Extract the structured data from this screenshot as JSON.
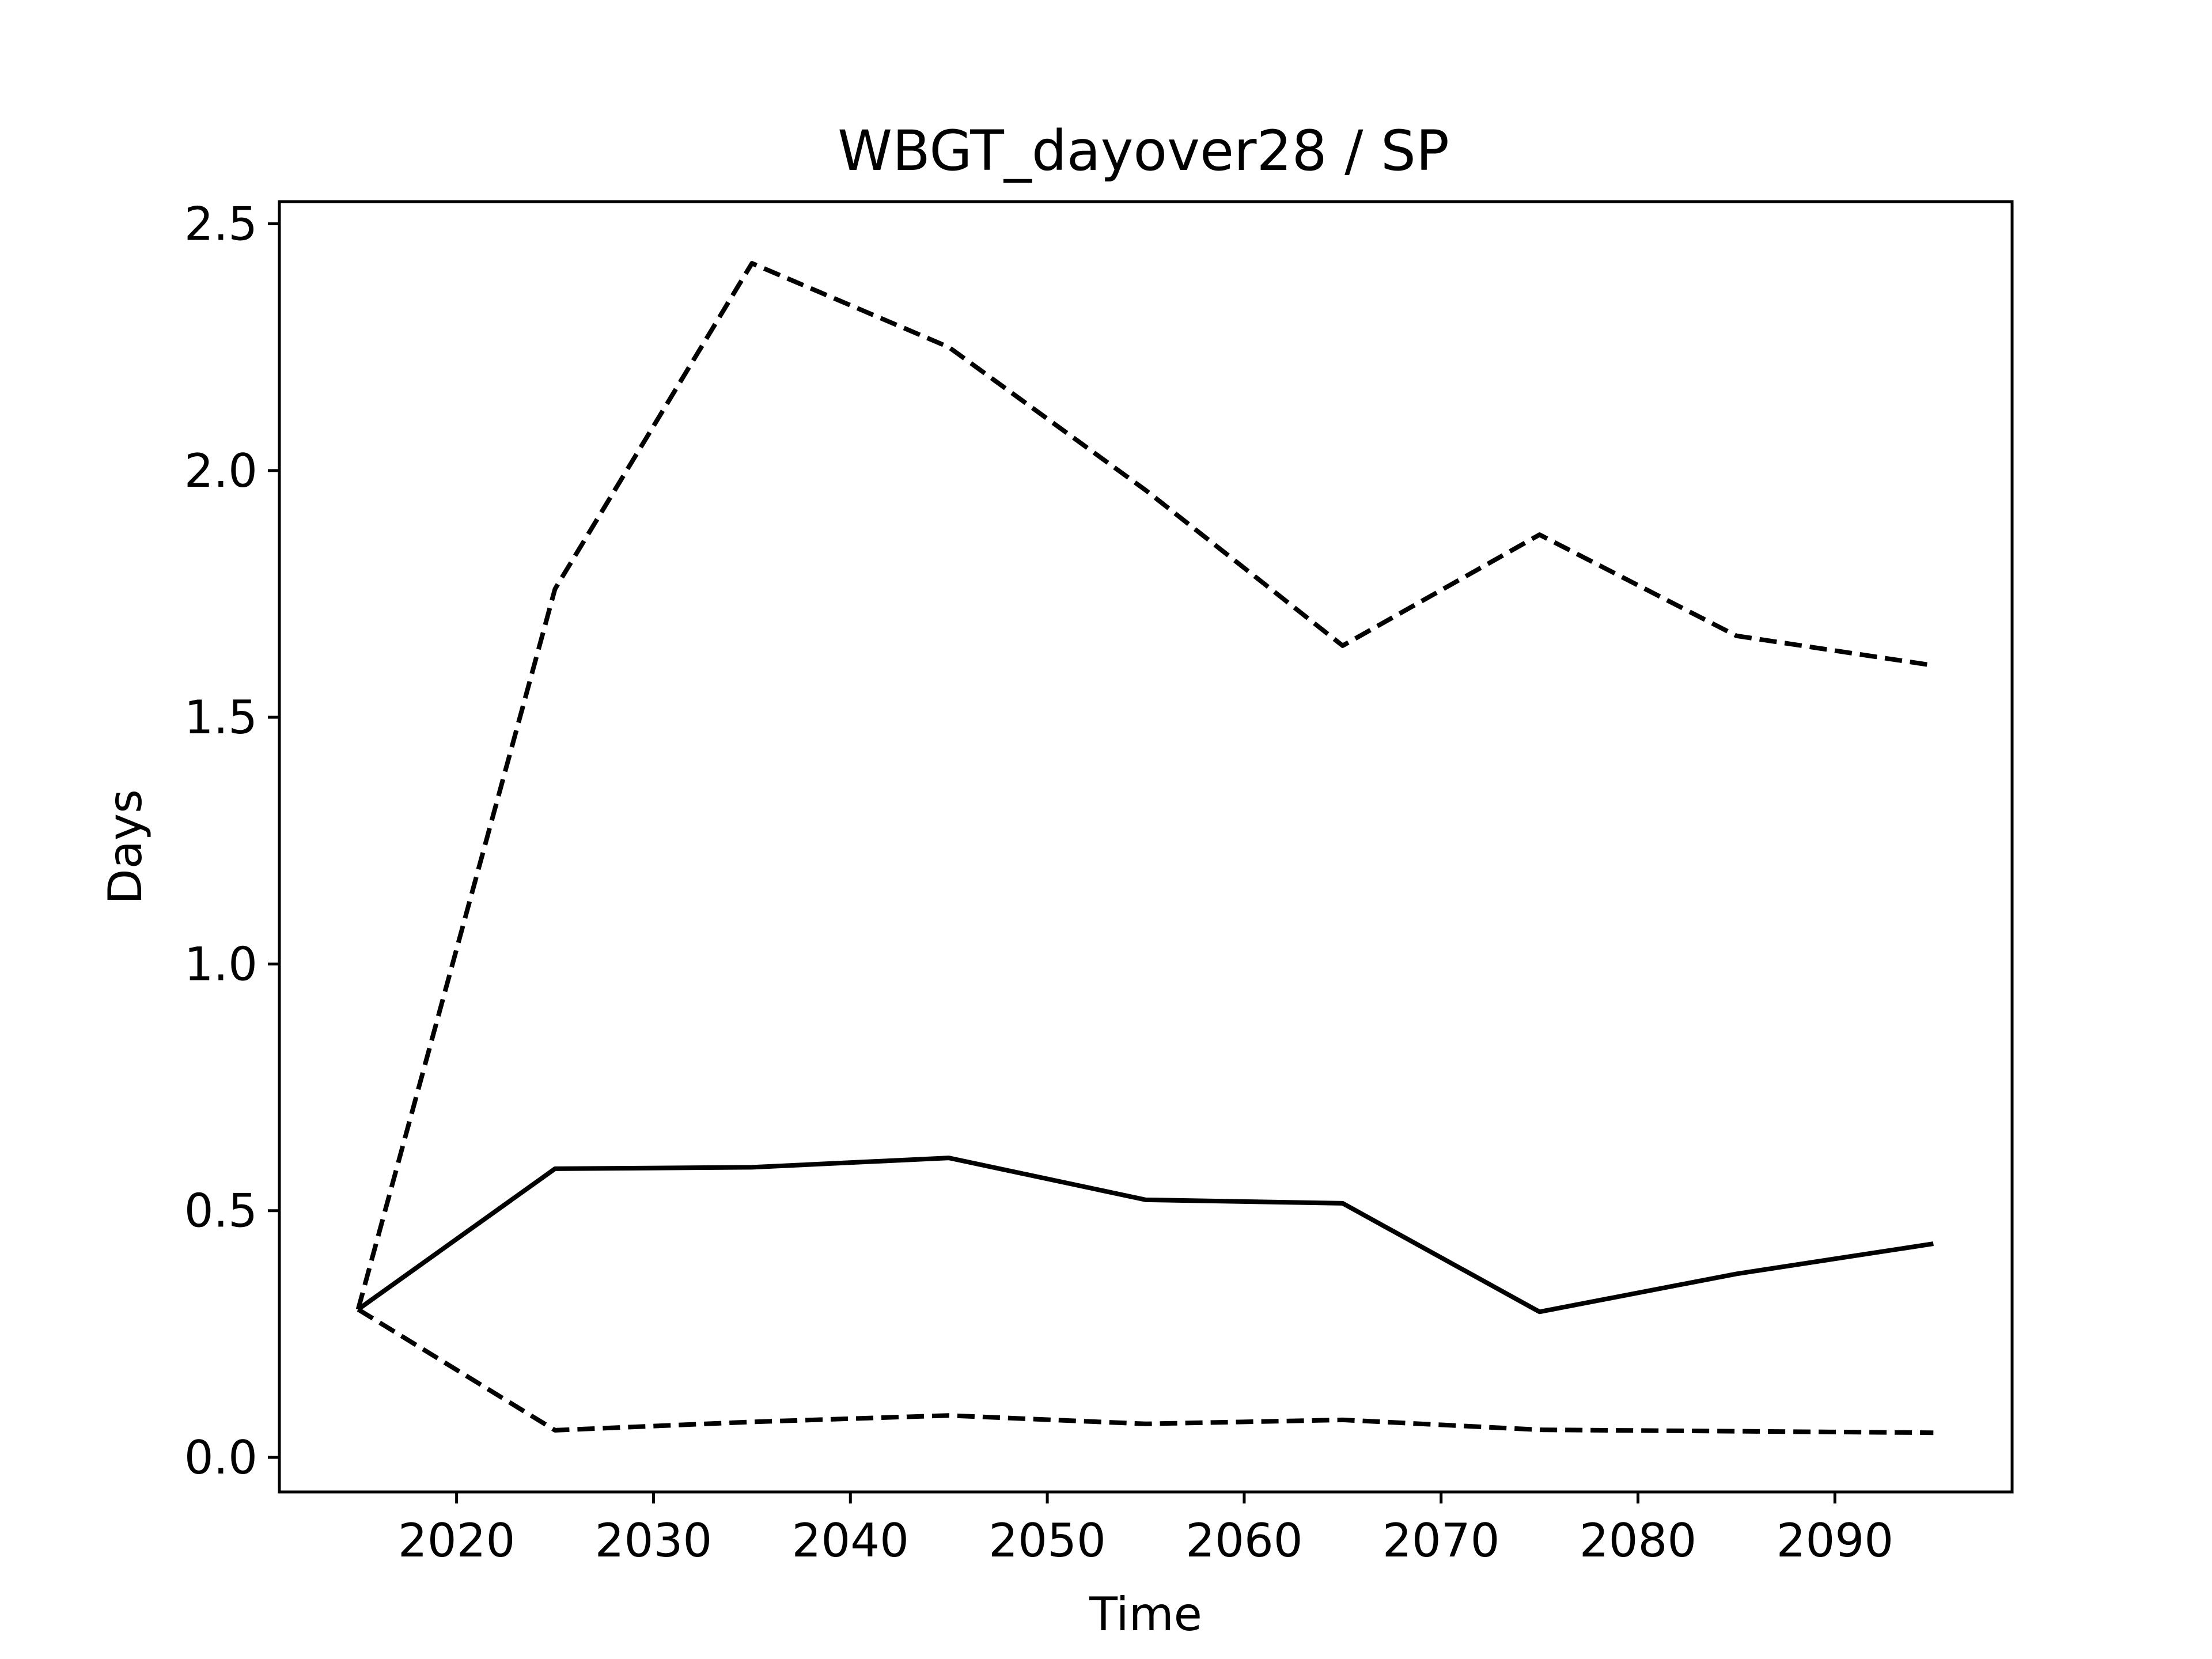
{
  "chart_data": {
    "type": "line",
    "title": "WBGT_dayover28 / SP",
    "xlabel": "Time",
    "ylabel": "Days",
    "xlim": [
      2011,
      2099
    ],
    "ylim": [
      -0.07,
      2.545
    ],
    "x_ticks": [
      2020,
      2030,
      2040,
      2050,
      2060,
      2070,
      2080,
      2090
    ],
    "y_ticks": [
      0.0,
      0.5,
      1.0,
      1.5,
      2.0,
      2.5
    ],
    "x_tick_labels": [
      "2020",
      "2030",
      "2040",
      "2050",
      "2060",
      "2070",
      "2080",
      "2090"
    ],
    "y_tick_labels": [
      "0.0",
      "0.5",
      "1.0",
      "1.5",
      "2.0",
      "2.5"
    ],
    "grid": false,
    "color": "#000000",
    "x": [
      2015,
      2025,
      2035,
      2045,
      2055,
      2065,
      2075,
      2085,
      2095
    ],
    "series": [
      {
        "style": "dashed",
        "values": [
          0.3,
          1.76,
          2.42,
          2.25,
          1.96,
          1.645,
          1.87,
          1.665,
          1.605
        ]
      },
      {
        "style": "solid",
        "values": [
          0.3,
          0.585,
          0.588,
          0.607,
          0.522,
          0.515,
          0.295,
          0.372,
          0.433
        ]
      },
      {
        "style": "dashed",
        "values": [
          0.3,
          0.055,
          0.072,
          0.085,
          0.068,
          0.076,
          0.056,
          0.053,
          0.05
        ]
      }
    ]
  }
}
